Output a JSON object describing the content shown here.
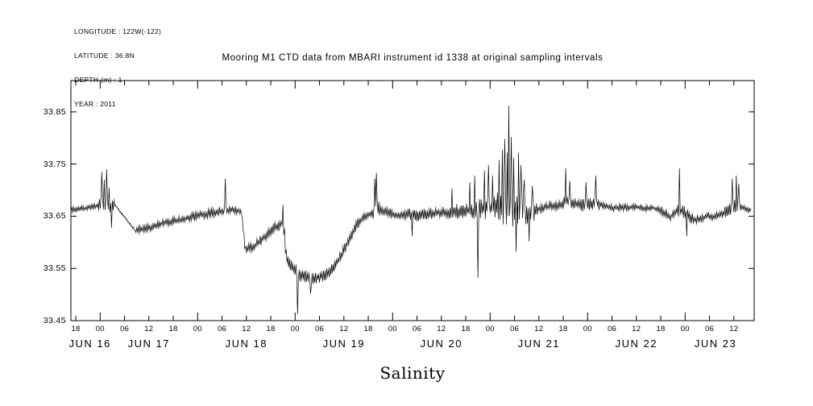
{
  "meta": {
    "longitude": "LONGITUDE : 122W(-122)",
    "latitude": "LATITUDE : 36.8N",
    "depth": "DEPTH (m) : 1",
    "year": "YEAR : 2011"
  },
  "title": "Mooring M1 CTD data from MBARI instrument id 1338 at original sampling intervals",
  "bottom_label": "Salinity",
  "chart_data": {
    "type": "line",
    "title": "Mooring M1 CTD data from MBARI instrument id 1338 at original sampling intervals",
    "xlabel": "Salinity",
    "ylabel": "",
    "line_color": "#000000",
    "grid": false,
    "legend": "none",
    "ylim": [
      33.45,
      33.91
    ],
    "yticks": [
      33.45,
      33.55,
      33.65,
      33.75,
      33.85
    ],
    "x_domain_hours": [
      16.8,
      185.0
    ],
    "x_data_range": [
      16.8,
      184.2
    ],
    "x_unit": "hours from JUN 16 00:00, year 2011",
    "xtick_label_format": "hour-of-day HH",
    "xticks_hours": [
      18,
      24,
      30,
      36,
      42,
      48,
      54,
      60,
      66,
      72,
      78,
      84,
      90,
      96,
      102,
      108,
      114,
      120,
      126,
      132,
      138,
      144,
      150,
      156,
      162,
      168,
      174,
      180
    ],
    "day_labels": [
      {
        "label": "JUN 16",
        "hour": 21.5
      },
      {
        "label": "JUN 17",
        "hour": 36
      },
      {
        "label": "JUN 18",
        "hour": 60
      },
      {
        "label": "JUN 19",
        "hour": 84
      },
      {
        "label": "JUN 20",
        "hour": 108
      },
      {
        "label": "JUN 21",
        "hour": 132
      },
      {
        "label": "JUN 22",
        "hour": 156
      },
      {
        "label": "JUN 23",
        "hour": 175.5
      }
    ],
    "sample_step_hours": 0.2,
    "keypoints": [
      [
        16.8,
        33.662
      ],
      [
        19,
        33.664
      ],
      [
        21,
        33.666
      ],
      [
        23,
        33.669
      ],
      [
        24,
        33.672
      ],
      [
        25.5,
        33.668
      ],
      [
        27,
        33.67
      ],
      [
        27.7,
        33.671
      ],
      [
        32.8,
        33.621
      ],
      [
        34,
        33.625
      ],
      [
        36,
        33.628
      ],
      [
        38,
        33.633
      ],
      [
        40,
        33.638
      ],
      [
        42,
        33.64
      ],
      [
        44,
        33.643
      ],
      [
        46,
        33.647
      ],
      [
        48,
        33.651
      ],
      [
        50,
        33.654
      ],
      [
        52,
        33.657
      ],
      [
        54.5,
        33.661
      ],
      [
        56.5,
        33.663
      ],
      [
        58.8,
        33.659
      ],
      [
        59.7,
        33.586
      ],
      [
        61,
        33.589
      ],
      [
        62.5,
        33.596
      ],
      [
        64,
        33.607
      ],
      [
        65.5,
        33.618
      ],
      [
        67,
        33.627
      ],
      [
        68.3,
        33.633
      ],
      [
        69,
        33.64
      ],
      [
        69.9,
        33.571
      ],
      [
        71,
        33.556
      ],
      [
        72,
        33.547
      ],
      [
        73.5,
        33.539
      ],
      [
        75,
        33.534
      ],
      [
        76.5,
        33.531
      ],
      [
        78,
        33.534
      ],
      [
        79.5,
        33.539
      ],
      [
        81,
        33.547
      ],
      [
        82.5,
        33.565
      ],
      [
        84,
        33.585
      ],
      [
        85.5,
        33.607
      ],
      [
        87,
        33.632
      ],
      [
        88.5,
        33.645
      ],
      [
        90,
        33.652
      ],
      [
        91.5,
        33.657
      ],
      [
        92.5,
        33.664
      ],
      [
        94,
        33.659
      ],
      [
        96,
        33.654
      ],
      [
        98,
        33.651
      ],
      [
        100,
        33.654
      ],
      [
        102,
        33.65
      ],
      [
        104,
        33.653
      ],
      [
        106,
        33.655
      ],
      [
        108,
        33.657
      ],
      [
        110,
        33.659
      ],
      [
        112,
        33.66
      ],
      [
        114,
        33.661
      ],
      [
        116,
        33.66
      ],
      [
        118,
        33.663
      ],
      [
        120,
        33.666
      ],
      [
        122,
        33.669
      ],
      [
        124,
        33.671
      ],
      [
        126,
        33.666
      ],
      [
        128,
        33.659
      ],
      [
        129.5,
        33.654
      ],
      [
        131,
        33.661
      ],
      [
        133,
        33.667
      ],
      [
        135,
        33.669
      ],
      [
        137,
        33.671
      ],
      [
        139,
        33.68
      ],
      [
        140.5,
        33.676
      ],
      [
        142,
        33.671
      ],
      [
        144,
        33.672
      ],
      [
        146,
        33.675
      ],
      [
        148,
        33.671
      ],
      [
        150,
        33.666
      ],
      [
        152,
        33.667
      ],
      [
        154,
        33.666
      ],
      [
        156,
        33.668
      ],
      [
        158,
        33.665
      ],
      [
        160,
        33.666
      ],
      [
        162,
        33.661
      ],
      [
        163.5,
        33.655
      ],
      [
        164.5,
        33.649
      ],
      [
        166,
        33.661
      ],
      [
        167.5,
        33.659
      ],
      [
        169,
        33.649
      ],
      [
        170.5,
        33.643
      ],
      [
        172,
        33.646
      ],
      [
        173.5,
        33.65
      ],
      [
        175,
        33.648
      ],
      [
        176.5,
        33.653
      ],
      [
        178,
        33.659
      ],
      [
        179.5,
        33.667
      ],
      [
        181,
        33.67
      ],
      [
        182.5,
        33.666
      ],
      [
        184.2,
        33.661
      ]
    ],
    "noise_segments": [
      [
        16.8,
        23.5,
        0.006
      ],
      [
        23.5,
        27.5,
        0.018
      ],
      [
        27.5,
        32.8,
        0.0025
      ],
      [
        32.8,
        40,
        0.008
      ],
      [
        40,
        54,
        0.009
      ],
      [
        54,
        58.8,
        0.008
      ],
      [
        58.8,
        63,
        0.011
      ],
      [
        63,
        69.3,
        0.011
      ],
      [
        69.3,
        73.5,
        0.016
      ],
      [
        73.5,
        81,
        0.013
      ],
      [
        81,
        88,
        0.011
      ],
      [
        88,
        91,
        0.009
      ],
      [
        91,
        93,
        0.016
      ],
      [
        93,
        99,
        0.01
      ],
      [
        99,
        110,
        0.011
      ],
      [
        110,
        117.3,
        0.016
      ],
      [
        117.3,
        121.3,
        0.022
      ],
      [
        121.3,
        128.6,
        0.038
      ],
      [
        128.6,
        131.5,
        0.022
      ],
      [
        131.5,
        138,
        0.01
      ],
      [
        138,
        147,
        0.012
      ],
      [
        147,
        162,
        0.007
      ],
      [
        162,
        166,
        0.009
      ],
      [
        166,
        169.2,
        0.012
      ],
      [
        169.2,
        177.5,
        0.008
      ],
      [
        177.5,
        181.5,
        0.014
      ],
      [
        181.5,
        185,
        0.006
      ]
    ],
    "spikes": [
      [
        24.5,
        33.735
      ],
      [
        25.0,
        33.72
      ],
      [
        25.6,
        33.74
      ],
      [
        26.2,
        33.705
      ],
      [
        26.8,
        33.628
      ],
      [
        54.9,
        33.722
      ],
      [
        69.1,
        33.672
      ],
      [
        72.5,
        33.462
      ],
      [
        75.8,
        33.502
      ],
      [
        91.6,
        33.722
      ],
      [
        92.0,
        33.733
      ],
      [
        100.8,
        33.612
      ],
      [
        110.5,
        33.703
      ],
      [
        114.9,
        33.715
      ],
      [
        116.2,
        33.728
      ],
      [
        117.0,
        33.532
      ],
      [
        118.6,
        33.738
      ],
      [
        119.6,
        33.748
      ],
      [
        120.6,
        33.728
      ],
      [
        122.1,
        33.758
      ],
      [
        122.9,
        33.778
      ],
      [
        123.6,
        33.798
      ],
      [
        124.1,
        33.772
      ],
      [
        124.6,
        33.862
      ],
      [
        125.2,
        33.802
      ],
      [
        125.8,
        33.762
      ],
      [
        126.3,
        33.582
      ],
      [
        126.9,
        33.772
      ],
      [
        127.6,
        33.748
      ],
      [
        128.3,
        33.72
      ],
      [
        129.6,
        33.602
      ],
      [
        130.3,
        33.708
      ],
      [
        138.7,
        33.742
      ],
      [
        139.7,
        33.718
      ],
      [
        143.6,
        33.715
      ],
      [
        146.1,
        33.728
      ],
      [
        166.6,
        33.742
      ],
      [
        168.3,
        33.612
      ],
      [
        179.6,
        33.722
      ],
      [
        180.7,
        33.728
      ],
      [
        181.2,
        33.712
      ]
    ]
  }
}
